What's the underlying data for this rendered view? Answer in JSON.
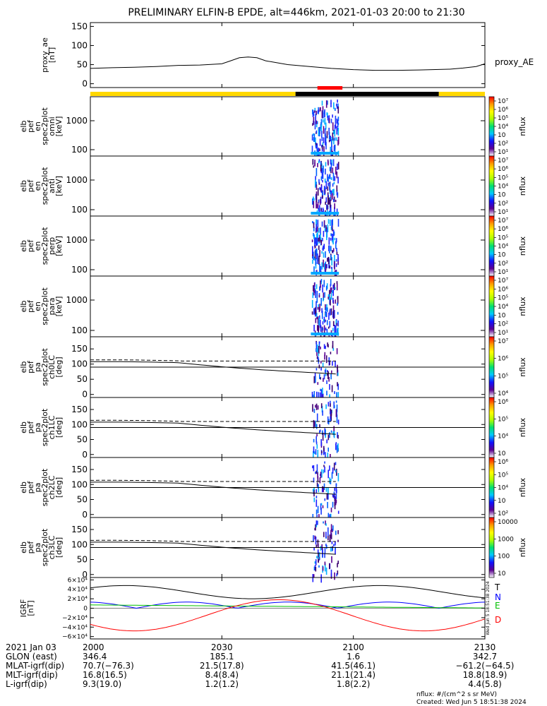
{
  "title": "PRELIMINARY ELFIN-B EPDE, alt=446km, 2021-01-03 20:00 to 21:30",
  "colorbar_gradient": [
    "#ffffff",
    "#5a0090",
    "#1010ff",
    "#00c8ff",
    "#00e070",
    "#b0ff00",
    "#ffff00",
    "#ff9900",
    "#ff0000"
  ],
  "colors": {
    "sci_zone_yellow": "#ffd800",
    "sci_zone_black": "#000000",
    "sci_zone_red": "#ff0000"
  },
  "chart_data": [
    {
      "type": "line",
      "name": "proxy_ae",
      "ylabel_lines": [
        "proxy_ae",
        "[nT]"
      ],
      "series_label": "proxy_AE",
      "xlim": [
        0,
        90
      ],
      "ylim": [
        -10,
        160
      ],
      "yticks": [
        "0",
        "50",
        "100",
        "150"
      ],
      "ytick_values": [
        0,
        50,
        100,
        150
      ],
      "x": [
        0,
        5,
        10,
        15,
        20,
        25,
        30,
        32,
        34,
        36,
        38,
        40,
        42,
        45,
        50,
        55,
        60,
        65,
        70,
        75,
        78,
        82,
        85,
        88,
        90
      ],
      "values": [
        40,
        42,
        43,
        45,
        48,
        49,
        52,
        60,
        68,
        70,
        68,
        60,
        56,
        50,
        45,
        40,
        37,
        35,
        35,
        36,
        37,
        38,
        41,
        45,
        52
      ]
    },
    {
      "type": "heatmap",
      "name": "elb pef en spec2plot omni",
      "ylabel_lines": [
        "elb",
        "pef",
        "en",
        "spec2plot",
        "omni",
        "[keV]"
      ],
      "yticks": [
        "100",
        "1000"
      ],
      "cbar_ticks": [
        "10⁷",
        "10⁶",
        "10⁵",
        "10⁴",
        "10⁳",
        "10²",
        "10¹"
      ],
      "cbar_label": "nflux"
    },
    {
      "type": "heatmap",
      "name": "elb pef en spec2plot anti",
      "ylabel_lines": [
        "elb",
        "pef",
        "en",
        "spec2plot",
        "anti",
        "[keV]"
      ],
      "yticks": [
        "100",
        "1000"
      ],
      "cbar_ticks": [
        "10⁷",
        "10⁶",
        "10⁵",
        "10⁴",
        "10⁳",
        "10²",
        "10¹"
      ],
      "cbar_label": "nflux"
    },
    {
      "type": "heatmap",
      "name": "elb pef en spec2plot perp",
      "ylabel_lines": [
        "elb",
        "pef",
        "en",
        "spec2plot",
        "perp",
        "[keV]"
      ],
      "yticks": [
        "100",
        "1000"
      ],
      "cbar_ticks": [
        "10⁷",
        "10⁶",
        "10⁵",
        "10⁴",
        "10⁳",
        "10²",
        "10¹"
      ],
      "cbar_label": "nflux"
    },
    {
      "type": "heatmap",
      "name": "elb pef en spec2plot para",
      "ylabel_lines": [
        "elb",
        "pef",
        "en",
        "spec2plot",
        "para",
        "[keV]"
      ],
      "yticks": [
        "100",
        "1000"
      ],
      "cbar_ticks": [
        "10⁷",
        "10⁶",
        "10⁵",
        "10⁴",
        "10⁳",
        "10²",
        "10¹"
      ],
      "cbar_label": "nflux"
    },
    {
      "type": "heatmap",
      "name": "elb pef pa spec2plot ch0LC",
      "ylabel_lines": [
        "elb",
        "pef",
        "pa",
        "spec2plot",
        "ch0LC",
        "[deg]"
      ],
      "yticks": [
        "0",
        "50",
        "100",
        "150"
      ],
      "ytick_values": [
        0,
        50,
        100,
        150
      ],
      "ylim": [
        -10,
        190
      ],
      "cbar_ticks": [
        "10⁷",
        "10⁶",
        "10⁵",
        "10⁴"
      ],
      "cbar_label": "nflux"
    },
    {
      "type": "heatmap",
      "name": "elb pef pa spec2plot ch1LC",
      "ylabel_lines": [
        "elb",
        "pef",
        "pa",
        "spec2plot",
        "ch1LC",
        "[deg]"
      ],
      "yticks": [
        "0",
        "50",
        "100",
        "150"
      ],
      "ytick_values": [
        0,
        50,
        100,
        150
      ],
      "ylim": [
        -10,
        190
      ],
      "cbar_ticks": [
        "10⁶",
        "10⁵",
        "10⁴",
        "10⁳"
      ],
      "cbar_label": "nflux"
    },
    {
      "type": "heatmap",
      "name": "elb pef pa spec2plot ch2LC",
      "ylabel_lines": [
        "elb",
        "pef",
        "pa",
        "spec2plot",
        "ch2LC",
        "[deg]"
      ],
      "yticks": [
        "0",
        "50",
        "100",
        "150"
      ],
      "ytick_values": [
        0,
        50,
        100,
        150
      ],
      "ylim": [
        -10,
        190
      ],
      "cbar_ticks": [
        "10⁶",
        "10⁵",
        "10⁴",
        "10⁳",
        "10²"
      ],
      "cbar_label": "nflux"
    },
    {
      "type": "heatmap",
      "name": "elb pef pa spec2plot ch3LC",
      "ylabel_lines": [
        "elb",
        "pef",
        "pa",
        "spec2plot",
        "ch3LC",
        "[deg]"
      ],
      "yticks": [
        "0",
        "50",
        "100",
        "150"
      ],
      "ytick_values": [
        0,
        50,
        100,
        150
      ],
      "ylim": [
        -10,
        190
      ],
      "cbar_ticks": [
        "10000",
        "1000",
        "100",
        "10"
      ],
      "cbar_label": "nflux"
    },
    {
      "type": "line",
      "name": "IGRF",
      "ylabel_lines": [
        "IGRF",
        "[nT]"
      ],
      "ylim": [
        -65000,
        65000
      ],
      "yticks": [
        "6×10⁴",
        "4×10⁴",
        "2×10⁴",
        "0",
        "−2×10⁴",
        "−4×10⁴",
        "−6×10⁴"
      ],
      "ytick_values": [
        60000,
        40000,
        20000,
        0,
        -20000,
        -40000,
        -60000
      ],
      "side_stamp": "Wed Jun 5 18:51:38 2024",
      "series": [
        {
          "name": "T",
          "color": "#000000"
        },
        {
          "name": "N",
          "color": "#0000ff"
        },
        {
          "name": "E",
          "color": "#00c000"
        },
        {
          "name": "D",
          "color": "#ff0000"
        }
      ]
    }
  ],
  "footer": {
    "rows": [
      {
        "label": "2021 Jan 03",
        "values": [
          "2000",
          "2030",
          "2100",
          "2130"
        ]
      },
      {
        "label": "GLON (east)",
        "values": [
          "346.4",
          "185.1",
          "1.6",
          "342.7"
        ]
      },
      {
        "label": "MLAT-igrf(dip)",
        "values": [
          "70.7(−76.3)",
          "21.5(17.8)",
          "41.5(46.1)",
          "−61.2(−64.5)"
        ]
      },
      {
        "label": "MLT-igrf(dip)",
        "values": [
          "16.8(16.5)",
          "8.4(8.4)",
          "21.1(21.4)",
          "18.8(18.9)"
        ]
      },
      {
        "label": "L-igrf(dip)",
        "values": [
          "9.3(19.0)",
          "1.2(1.2)",
          "1.8(2.2)",
          "4.4(5.8)"
        ]
      }
    ],
    "units_note": "nflux: #/(cm^2 s sr MeV)",
    "created": "Created: Wed Jun  5 18:51:38 2024"
  }
}
